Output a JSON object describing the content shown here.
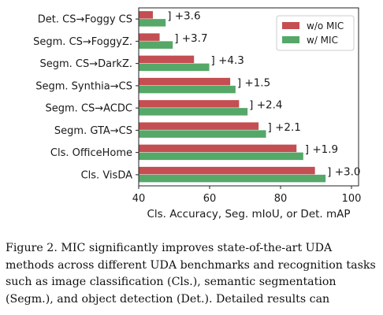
{
  "chart_data": {
    "type": "bar",
    "orientation": "horizontal",
    "categories": [
      "Det. CS→Foggy CS",
      "Segm. CS→FoggyZ.",
      "Segm. CS→DarkZ.",
      "Segm. Synthia→CS",
      "Segm. CS→ACDC",
      "Segm. GTA→CS",
      "Cls. OfficeHome",
      "Cls. VisDA"
    ],
    "series": [
      {
        "name": "w/o MIC",
        "values": [
          44.0,
          45.9,
          55.6,
          65.8,
          68.3,
          73.8,
          84.5,
          89.7
        ]
      },
      {
        "name": "w/ MIC",
        "values": [
          47.6,
          49.6,
          59.9,
          67.3,
          70.7,
          75.9,
          86.4,
          92.7
        ]
      }
    ],
    "annotations": [
      "] +3.6",
      "] +3.7",
      "] +4.3",
      "] +1.5",
      "] +2.4",
      "] +2.1",
      "] +1.9",
      "] +3.0"
    ],
    "xlabel": "Cls. Accuracy, Seg. mIoU, or Det. mAP",
    "xlim": [
      40,
      102
    ],
    "xticks": [
      40,
      60,
      80,
      100
    ],
    "legend_position": "top-right",
    "grid": false,
    "colors": {
      "w/o MIC": "#c44e52",
      "w/ MIC": "#55a868"
    }
  },
  "caption": {
    "label": "Figure 2.",
    "text": " MIC significantly improves state-of-the-art UDA methods across different UDA benchmarks and recognition tasks such as image classification (Cls.), semantic segmentation (Segm.), and object detection (Det.). Detailed results can"
  }
}
